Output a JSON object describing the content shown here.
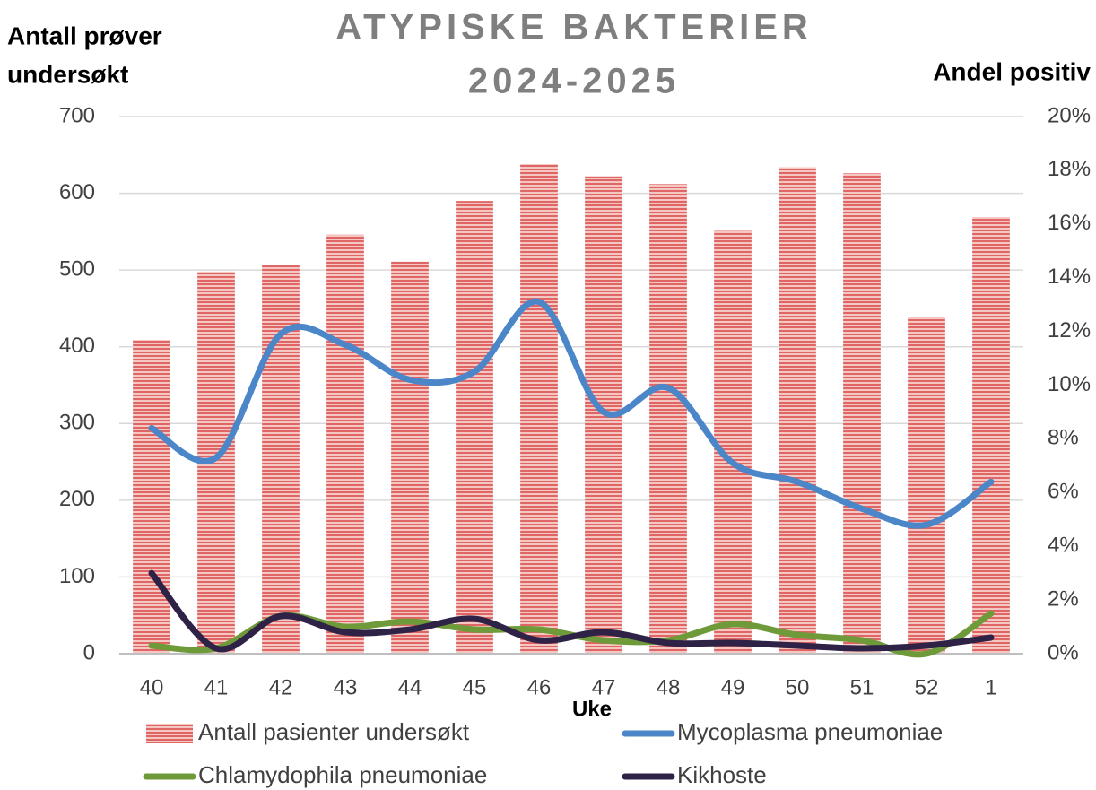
{
  "chart_data": {
    "type": "bar-line",
    "title": [
      "ATYPISKE BAKTERIER",
      "2024-2025"
    ],
    "y_label": [
      "Antall prøver",
      "undersøkt"
    ],
    "y2_label": "Andel positiv",
    "x_label": "Uke",
    "categories": [
      "40",
      "41",
      "42",
      "43",
      "44",
      "45",
      "46",
      "47",
      "48",
      "49",
      "50",
      "51",
      "52",
      "1"
    ],
    "series": [
      {
        "name": "Antall pasienter undersøkt",
        "type": "bar",
        "color": "#e06666",
        "values": [
          409,
          498,
          506,
          546,
          511,
          590,
          638,
          622,
          612,
          551,
          634,
          626,
          439,
          569
        ]
      },
      {
        "name": "Mycoplasma pneumoniae",
        "type": "line",
        "axis": "y2",
        "color": "#4a86c8",
        "values": [
          8.4,
          7.3,
          11.9,
          11.5,
          10.2,
          10.5,
          13.1,
          9.0,
          9.9,
          7.1,
          6.4,
          5.4,
          4.8,
          6.4
        ]
      },
      {
        "name": "Chlamydophila pneumoniae",
        "type": "line",
        "axis": "y2",
        "color": "#6e9a3a",
        "values": [
          0.3,
          0.2,
          1.4,
          1.0,
          1.2,
          0.9,
          0.9,
          0.5,
          0.5,
          1.1,
          0.7,
          0.5,
          0.0,
          1.5
        ]
      },
      {
        "name": "Kikhoste",
        "type": "line",
        "axis": "y2",
        "color": "#2e2346",
        "values": [
          3.0,
          0.2,
          1.4,
          0.8,
          0.9,
          1.3,
          0.5,
          0.8,
          0.4,
          0.4,
          0.3,
          0.2,
          0.3,
          0.6
        ]
      }
    ],
    "ylim": [
      0,
      700
    ],
    "yticks": [
      0,
      100,
      200,
      300,
      400,
      500,
      600,
      700
    ],
    "y2lim": [
      0,
      20
    ],
    "y2ticks": [
      {
        "value": 0,
        "label": "0%"
      },
      {
        "value": 2,
        "label": "2%"
      },
      {
        "value": 4,
        "label": "4%"
      },
      {
        "value": 6,
        "label": "6%"
      },
      {
        "value": 8,
        "label": "8%"
      },
      {
        "value": 10,
        "label": "10%"
      },
      {
        "value": 12,
        "label": "12%"
      },
      {
        "value": 14,
        "label": "14%"
      },
      {
        "value": 16,
        "label": "16%"
      },
      {
        "value": 18,
        "label": "18%"
      },
      {
        "value": 20,
        "label": "20%"
      }
    ],
    "grid": true,
    "legend": "bottom"
  }
}
